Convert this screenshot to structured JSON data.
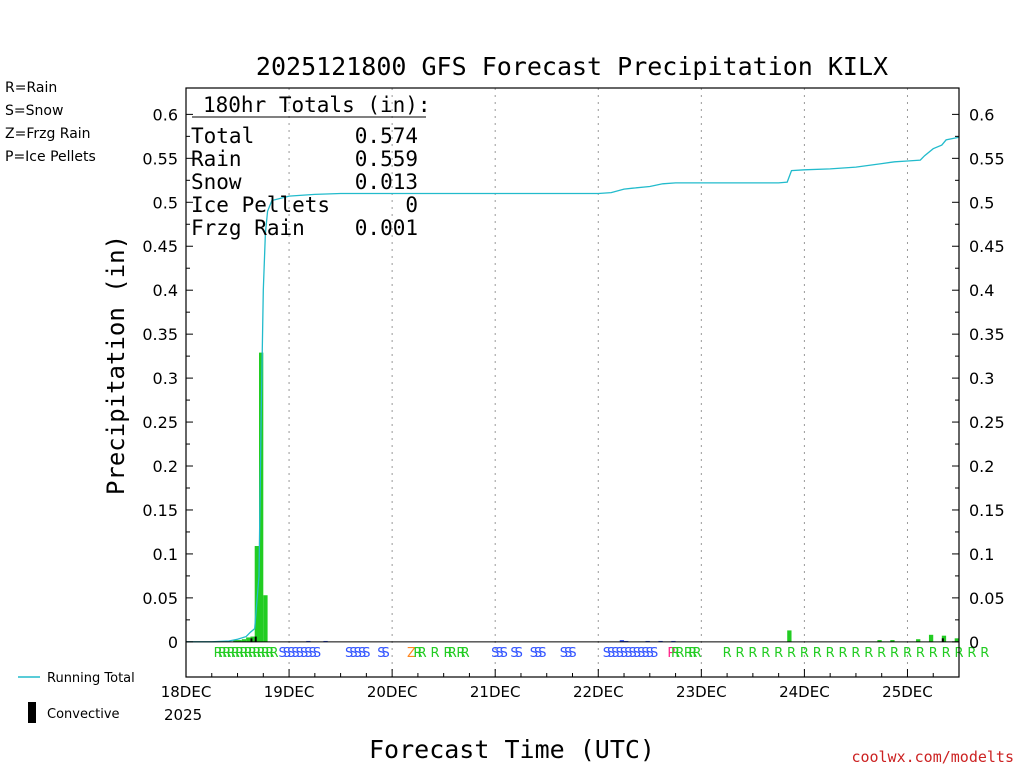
{
  "chart_data": {
    "type": "bar",
    "title": "2025121800 GFS Forecast Precipitation KILX",
    "xlabel": "Forecast Time (UTC)",
    "ylabel": "Precipitation (in)",
    "ylim": [
      -0.04,
      0.63
    ],
    "yticks": [
      "0",
      "0.05",
      "0.1",
      "0.15",
      "0.2",
      "0.25",
      "0.3",
      "0.35",
      "0.4",
      "0.45",
      "0.5",
      "0.55",
      "0.6"
    ],
    "xlim_hours": [
      0,
      180
    ],
    "xticks": [
      {
        "hour": 0,
        "label": "18DEC"
      },
      {
        "hour": 24,
        "label": "19DEC"
      },
      {
        "hour": 48,
        "label": "20DEC"
      },
      {
        "hour": 72,
        "label": "21DEC"
      },
      {
        "hour": 96,
        "label": "22DEC"
      },
      {
        "hour": 120,
        "label": "23DEC"
      },
      {
        "hour": 144,
        "label": "24DEC"
      },
      {
        "hour": 168,
        "label": "25DEC"
      }
    ],
    "year_label": "2025",
    "totals": {
      "header": "180hr Totals (in):",
      "rows": [
        {
          "label": "Total",
          "value": "0.574"
        },
        {
          "label": "Rain",
          "value": "0.559"
        },
        {
          "label": "Snow",
          "value": "0.013"
        },
        {
          "label": "Ice Pellets",
          "value": "0"
        },
        {
          "label": "Frzg Rain",
          "value": "0.001"
        }
      ]
    },
    "ptype_legend": [
      {
        "text": "R=Rain",
        "color": "#22cc22"
      },
      {
        "text": "S=Snow",
        "color": "#3355ff"
      },
      {
        "text": "Z=Frzg Rain",
        "color": "#ff8822"
      },
      {
        "text": "P=Ice Pellets",
        "color": "#ff2288"
      }
    ],
    "series_legend": {
      "running_total": "Running Total",
      "convective": "Convective"
    },
    "bars": [
      {
        "hour": 12,
        "value": 0.002,
        "color": "#22cc22"
      },
      {
        "hour": 13,
        "value": 0.002,
        "color": "#22cc22"
      },
      {
        "hour": 14,
        "value": 0.003,
        "color": "#22cc22"
      },
      {
        "hour": 15,
        "value": 0.005,
        "color": "#22cc22"
      },
      {
        "hour": 16,
        "value": 0.006,
        "color": "#22cc22"
      },
      {
        "hour": 17,
        "value": 0.109,
        "color": "#22cc22"
      },
      {
        "hour": 18,
        "value": 0.329,
        "color": "#22cc22"
      },
      {
        "hour": 19,
        "value": 0.053,
        "color": "#22cc22"
      },
      {
        "hour": 29,
        "value": 0.001,
        "color": "#3355ff"
      },
      {
        "hour": 33,
        "value": 0.001,
        "color": "#3355ff"
      },
      {
        "hour": 102,
        "value": 0.002,
        "color": "#3355ff"
      },
      {
        "hour": 103,
        "value": 0.001,
        "color": "#3355ff"
      },
      {
        "hour": 108,
        "value": 0.001,
        "color": "#3355ff"
      },
      {
        "hour": 111,
        "value": 0.001,
        "color": "#3355ff"
      },
      {
        "hour": 114,
        "value": 0.001,
        "color": "#3355ff"
      },
      {
        "hour": 141,
        "value": 0.013,
        "color": "#22cc22"
      },
      {
        "hour": 162,
        "value": 0.002,
        "color": "#22cc22"
      },
      {
        "hour": 165,
        "value": 0.002,
        "color": "#22cc22"
      },
      {
        "hour": 171,
        "value": 0.003,
        "color": "#22cc22"
      },
      {
        "hour": 174,
        "value": 0.008,
        "color": "#22cc22"
      },
      {
        "hour": 177,
        "value": 0.007,
        "color": "#22cc22"
      },
      {
        "hour": 180,
        "value": 0.004,
        "color": "#22cc22"
      }
    ],
    "convective_bars": [
      {
        "hour": 16,
        "value": 0.004
      },
      {
        "hour": 17,
        "value": 0.006
      },
      {
        "hour": 177,
        "value": 0.004
      }
    ],
    "running_total": {
      "hours": [
        0,
        6,
        10,
        12,
        14,
        15,
        16,
        17,
        17.5,
        18,
        18.5,
        19,
        20,
        24,
        30,
        36,
        60,
        96,
        99,
        102,
        104,
        108,
        111,
        114,
        120,
        138,
        140,
        141,
        144,
        150,
        156,
        162,
        165,
        168,
        171,
        172,
        174,
        176,
        177,
        180
      ],
      "values": [
        0,
        0,
        0.001,
        0.003,
        0.006,
        0.011,
        0.015,
        0.075,
        0.26,
        0.4,
        0.465,
        0.49,
        0.502,
        0.507,
        0.509,
        0.51,
        0.51,
        0.51,
        0.511,
        0.515,
        0.516,
        0.518,
        0.521,
        0.522,
        0.522,
        0.522,
        0.523,
        0.536,
        0.537,
        0.538,
        0.54,
        0.544,
        0.546,
        0.547,
        0.548,
        0.553,
        0.561,
        0.565,
        0.571,
        0.574
      ]
    },
    "ptype_markers": [
      {
        "text": "RRRRRRRRRRRRRR",
        "color": "#22cc22",
        "start_hour": 7.5,
        "step_hours": 1
      },
      {
        "text": "SSSSSSSSS",
        "color": "#3355ff",
        "start_hour": 22.5,
        "step_hours": 1
      },
      {
        "text": "SSSSS",
        "color": "#3355ff",
        "start_hour": 38,
        "step_hours": 1
      },
      {
        "text": "SS",
        "color": "#3355ff",
        "start_hour": 45.5,
        "step_hours": 1
      },
      {
        "text": "Z",
        "color": "#ff8822",
        "start_hour": 52.5,
        "step_hours": 1
      },
      {
        "text": "RR",
        "color": "#22cc22",
        "start_hour": 54,
        "step_hours": 1
      },
      {
        "text": "R",
        "color": "#22cc22",
        "start_hour": 58,
        "step_hours": 1
      },
      {
        "text": "RR",
        "color": "#22cc22",
        "start_hour": 61,
        "step_hours": 1
      },
      {
        "text": "RR",
        "color": "#22cc22",
        "start_hour": 64,
        "step_hours": 1
      },
      {
        "text": "SSS",
        "color": "#3355ff",
        "start_hour": 72,
        "step_hours": 1
      },
      {
        "text": "SS",
        "color": "#3355ff",
        "start_hour": 76.5,
        "step_hours": 1
      },
      {
        "text": "SSS",
        "color": "#3355ff",
        "start_hour": 81,
        "step_hours": 1
      },
      {
        "text": "SSS",
        "color": "#3355ff",
        "start_hour": 88,
        "step_hours": 1
      },
      {
        "text": "SSSSSSSSSSSS",
        "color": "#3355ff",
        "start_hour": 98,
        "step_hours": 1
      },
      {
        "text": "P",
        "color": "#ff2288",
        "start_hour": 113,
        "step_hours": 1
      },
      {
        "text": "RR",
        "color": "#22cc22",
        "start_hour": 114,
        "step_hours": 1
      },
      {
        "text": "RRR",
        "color": "#22cc22",
        "start_hour": 117,
        "step_hours": 1
      },
      {
        "text": "RRRRRRRRRRRRRRRRRRRRR",
        "color": "#22cc22",
        "start_hour": 126,
        "step_hours": 3
      }
    ],
    "credit": "coolwx.com/modelts"
  }
}
